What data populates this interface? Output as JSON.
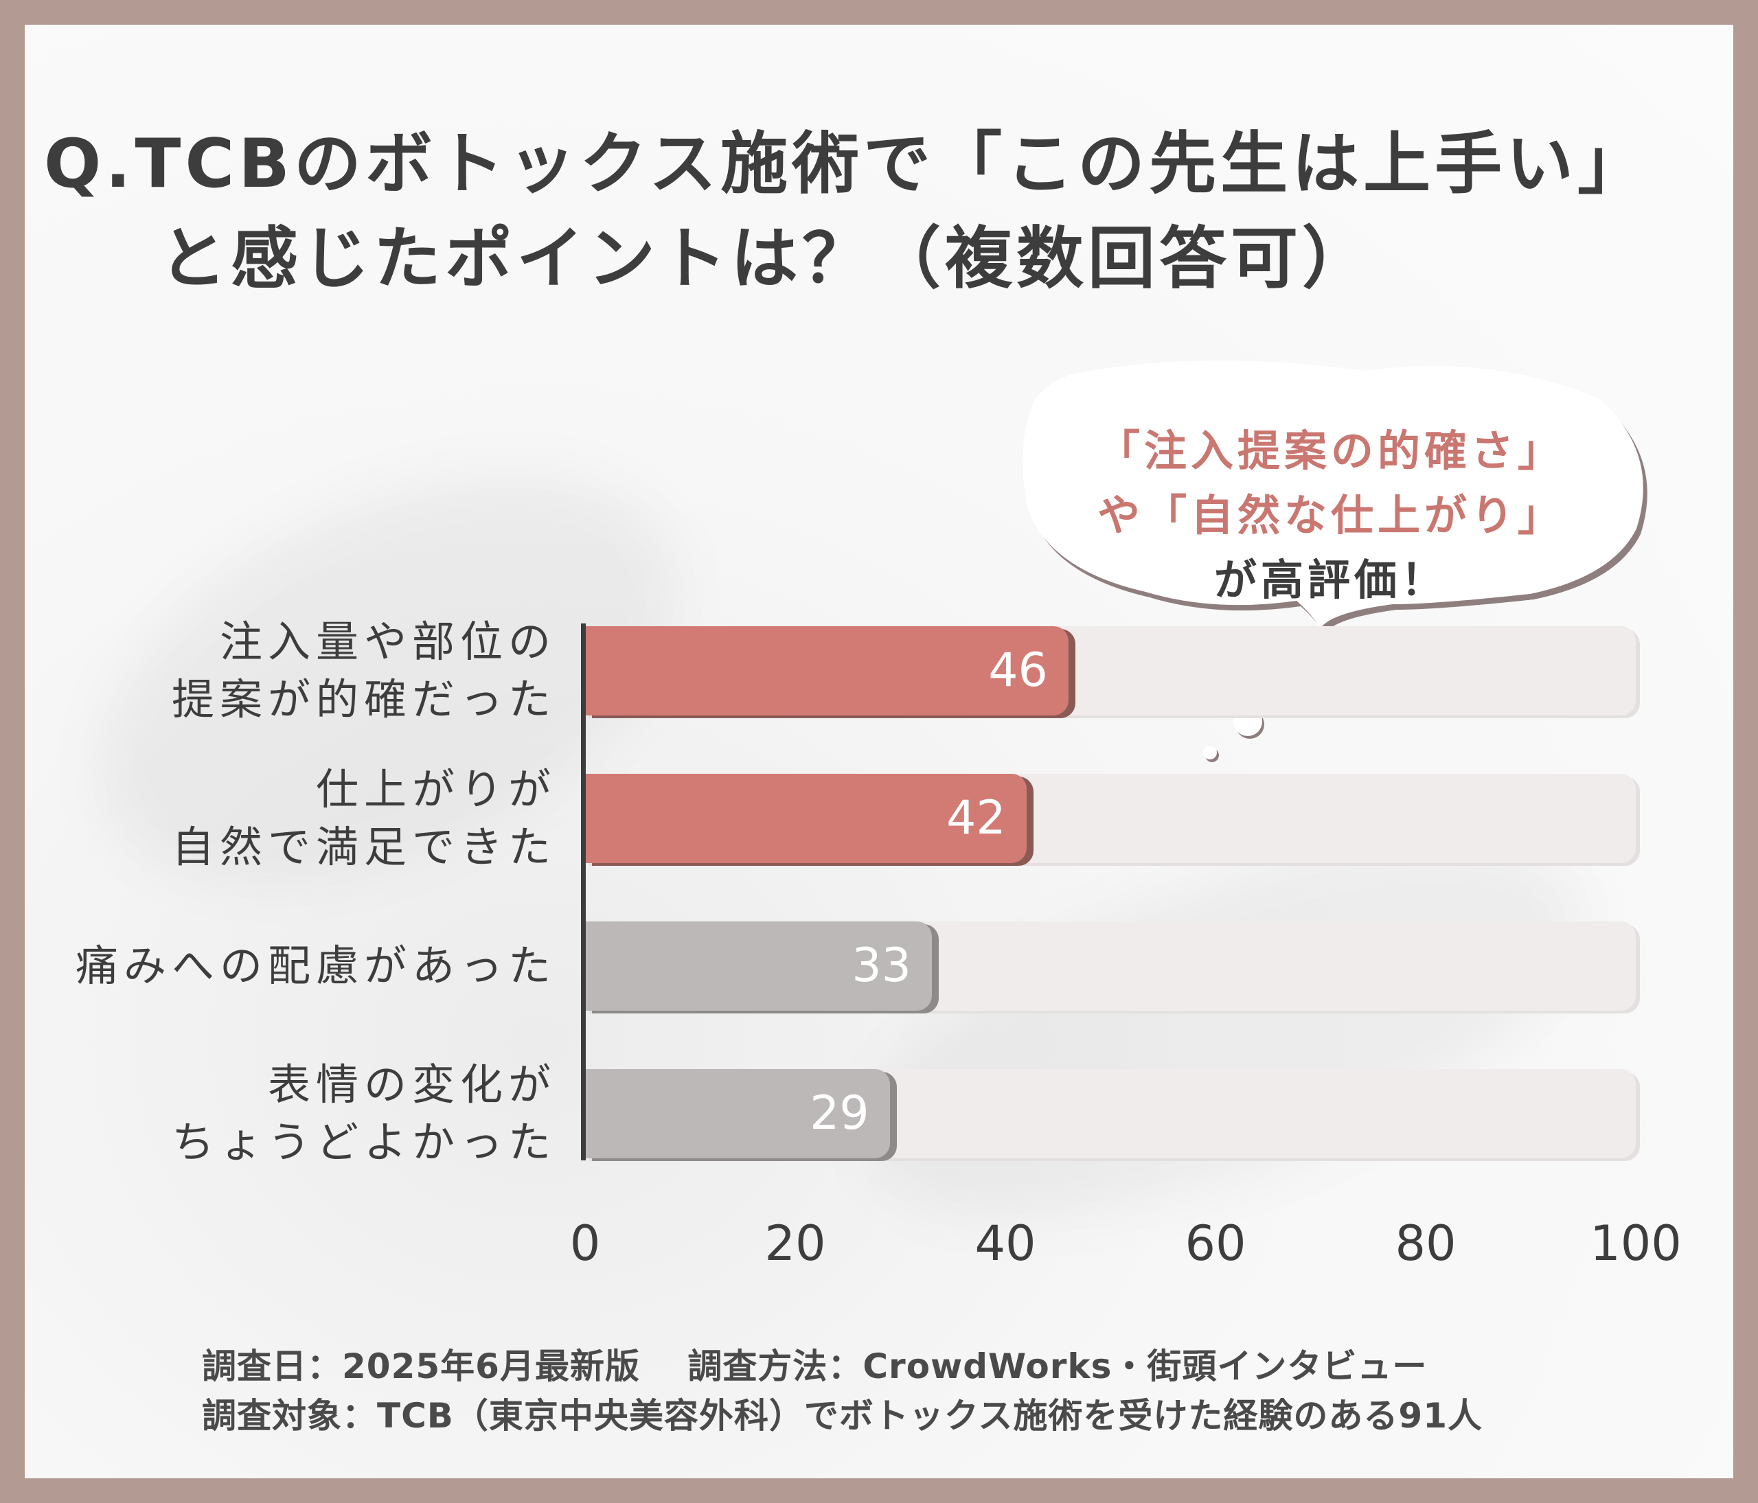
{
  "title": {
    "line1": "Q.TCBのボトックス施術で「この先生は上手い」",
    "line2": "と感じたポイントは？（複数回答可）"
  },
  "callout": {
    "line1": "「注入提案の的確さ」",
    "line2": "や「自然な仕上がり」",
    "line3": "が高評価！"
  },
  "colors": {
    "highlight": "#d27a74",
    "muted": "#bcb8b8",
    "track": "#efeceb",
    "text": "#3d3d3d"
  },
  "chart_data": {
    "type": "bar",
    "orientation": "horizontal",
    "categories": [
      [
        "注入量や部位の",
        "提案が的確だった"
      ],
      [
        "仕上がりが",
        "自然で満足できた"
      ],
      [
        "痛みへの配慮があった"
      ],
      [
        "表情の変化が",
        "ちょうどよかった"
      ]
    ],
    "values": [
      46,
      42,
      33,
      29
    ],
    "highlighted": [
      true,
      true,
      false,
      false
    ],
    "xlim": [
      0,
      100
    ],
    "xticks": [
      "0",
      "20",
      "40",
      "60",
      "80",
      "100"
    ],
    "grid": false,
    "legend": "none"
  },
  "footnote": {
    "line1": "調査日：2025年6月最新版　 調査方法：CrowdWorks・街頭インタビュー",
    "line2": "調査対象：TCB（東京中央美容外科）でボトックス施術を受けた経験のある91人"
  }
}
